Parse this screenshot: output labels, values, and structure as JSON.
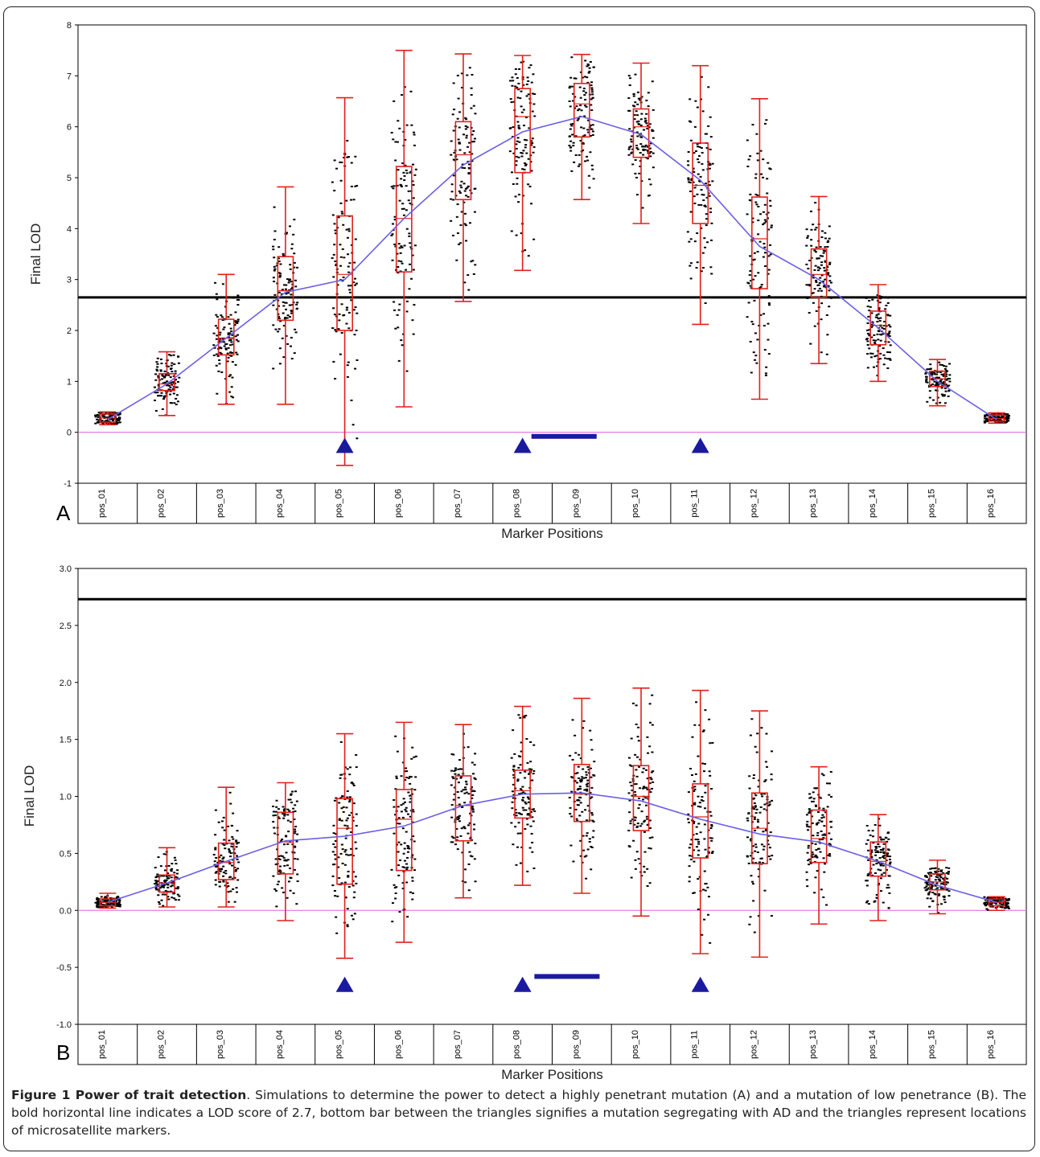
{
  "figure": {
    "caption_label": "Figure 1 Power of trait detection",
    "caption_text": ". Simulations to determine the power to detect a highly penetrant mutation (A) and a mutation of low penetrance (B). The bold horizontal line indicates a LOD score of 2.7, bottom bar between the triangles signifies a mutation segregating with AD and the triangles represent locations of microsatellite markers."
  },
  "colors": {
    "box": "#e0201c",
    "mean_line": "#6a5fe8",
    "zero_line": "#e060e0",
    "threshold": "#000000",
    "marker": "#1a1aa0",
    "points": "#000000"
  },
  "chart_data": [
    {
      "type": "box",
      "panel": "A",
      "ylabel": "Final LOD",
      "xlabel": "Marker Positions",
      "ylim": [
        -1,
        8
      ],
      "yticks": [
        "-1",
        "0",
        "1",
        "2",
        "3",
        "4",
        "5",
        "6",
        "7",
        "8"
      ],
      "categories": [
        "pos_01",
        "pos_02",
        "pos_03",
        "pos_04",
        "pos_05",
        "pos_06",
        "pos_07",
        "pos_08",
        "pos_09",
        "pos_10",
        "pos_11",
        "pos_12",
        "pos_13",
        "pos_14",
        "pos_15",
        "pos_16"
      ],
      "threshold": 2.65,
      "mean": [
        0.25,
        0.95,
        1.85,
        2.75,
        3.0,
        4.2,
        5.25,
        5.9,
        6.2,
        5.85,
        4.95,
        3.65,
        3.0,
        2.05,
        1.0,
        0.25
      ],
      "boxes": [
        {
          "min": 0.15,
          "q1": 0.2,
          "median": 0.28,
          "q3": 0.36,
          "max": 0.4
        },
        {
          "min": 0.33,
          "q1": 0.82,
          "median": 0.95,
          "q3": 1.15,
          "max": 1.58
        },
        {
          "min": 0.55,
          "q1": 1.52,
          "median": 1.85,
          "q3": 2.22,
          "max": 3.1
        },
        {
          "min": 0.55,
          "q1": 2.2,
          "median": 2.78,
          "q3": 3.45,
          "max": 4.82
        },
        {
          "min": -0.65,
          "q1": 2.0,
          "median": 3.1,
          "q3": 4.25,
          "max": 6.57
        },
        {
          "min": 0.5,
          "q1": 3.15,
          "median": 4.2,
          "q3": 5.22,
          "max": 7.5
        },
        {
          "min": 2.57,
          "q1": 4.57,
          "median": 5.45,
          "q3": 6.1,
          "max": 7.43
        },
        {
          "min": 3.18,
          "q1": 5.1,
          "median": 6.2,
          "q3": 6.75,
          "max": 7.4
        },
        {
          "min": 4.57,
          "q1": 5.8,
          "median": 6.45,
          "q3": 6.85,
          "max": 7.42
        },
        {
          "min": 4.1,
          "q1": 5.4,
          "median": 6.0,
          "q3": 6.35,
          "max": 7.25
        },
        {
          "min": 2.12,
          "q1": 4.1,
          "median": 4.85,
          "q3": 5.68,
          "max": 7.2
        },
        {
          "min": 0.65,
          "q1": 2.82,
          "median": 3.8,
          "q3": 4.62,
          "max": 6.55
        },
        {
          "min": 1.35,
          "q1": 2.65,
          "median": 3.1,
          "q3": 3.6,
          "max": 4.63
        },
        {
          "min": 1.0,
          "q1": 1.72,
          "median": 2.1,
          "q3": 2.38,
          "max": 2.9
        },
        {
          "min": 0.52,
          "q1": 0.9,
          "median": 1.05,
          "q3": 1.2,
          "max": 1.43
        },
        {
          "min": 0.18,
          "q1": 0.22,
          "median": 0.27,
          "q3": 0.34,
          "max": 0.38
        }
      ],
      "triangles_between": [
        4.5,
        7.5,
        10.5
      ],
      "bar_from_to": [
        7.65,
        8.75
      ],
      "bar_y": -0.08,
      "triangle_y": -0.28
    },
    {
      "type": "box",
      "panel": "B",
      "ylabel": "Final LOD",
      "xlabel": "Marker Positions",
      "ylim": [
        -1.0,
        3.0
      ],
      "yticks": [
        "-1.0",
        "-0.5",
        "0.0",
        "0.5",
        "1.0",
        "1.5",
        "2.0",
        "2.5",
        "3.0"
      ],
      "categories": [
        "pos_01",
        "pos_02",
        "pos_03",
        "pos_04",
        "pos_05",
        "pos_06",
        "pos_07",
        "pos_08",
        "pos_09",
        "pos_10",
        "pos_11",
        "pos_12",
        "pos_13",
        "pos_14",
        "pos_15",
        "pos_16"
      ],
      "threshold": 2.73,
      "mean": [
        0.07,
        0.24,
        0.43,
        0.61,
        0.65,
        0.74,
        0.92,
        1.02,
        1.03,
        0.96,
        0.8,
        0.67,
        0.6,
        0.43,
        0.22,
        0.07
      ],
      "boxes": [
        {
          "min": 0.02,
          "q1": 0.04,
          "median": 0.07,
          "q3": 0.1,
          "max": 0.15
        },
        {
          "min": 0.03,
          "q1": 0.16,
          "median": 0.24,
          "q3": 0.31,
          "max": 0.55
        },
        {
          "min": 0.03,
          "q1": 0.27,
          "median": 0.42,
          "q3": 0.59,
          "max": 1.08
        },
        {
          "min": -0.09,
          "q1": 0.32,
          "median": 0.6,
          "q3": 0.86,
          "max": 1.12
        },
        {
          "min": -0.42,
          "q1": 0.23,
          "median": 0.72,
          "q3": 0.98,
          "max": 1.55
        },
        {
          "min": -0.28,
          "q1": 0.35,
          "median": 0.8,
          "q3": 1.06,
          "max": 1.65
        },
        {
          "min": 0.11,
          "q1": 0.61,
          "median": 0.92,
          "q3": 1.18,
          "max": 1.63
        },
        {
          "min": 0.22,
          "q1": 0.81,
          "median": 1.05,
          "q3": 1.23,
          "max": 1.79
        },
        {
          "min": 0.15,
          "q1": 0.78,
          "median": 1.02,
          "q3": 1.28,
          "max": 1.86
        },
        {
          "min": -0.05,
          "q1": 0.7,
          "median": 1.0,
          "q3": 1.27,
          "max": 1.95
        },
        {
          "min": -0.38,
          "q1": 0.46,
          "median": 0.82,
          "q3": 1.11,
          "max": 1.93
        },
        {
          "min": -0.41,
          "q1": 0.41,
          "median": 0.72,
          "q3": 1.03,
          "max": 1.75
        },
        {
          "min": -0.12,
          "q1": 0.42,
          "median": 0.63,
          "q3": 0.88,
          "max": 1.26
        },
        {
          "min": -0.09,
          "q1": 0.3,
          "median": 0.43,
          "q3": 0.6,
          "max": 0.84
        },
        {
          "min": -0.03,
          "q1": 0.18,
          "median": 0.25,
          "q3": 0.32,
          "max": 0.44
        },
        {
          "min": 0.0,
          "q1": 0.04,
          "median": 0.07,
          "q3": 0.1,
          "max": 0.12
        }
      ],
      "triangles_between": [
        4.5,
        7.5,
        10.5
      ],
      "bar_from_to": [
        7.7,
        8.8
      ],
      "bar_y": -0.58,
      "triangle_y": -0.66
    }
  ]
}
